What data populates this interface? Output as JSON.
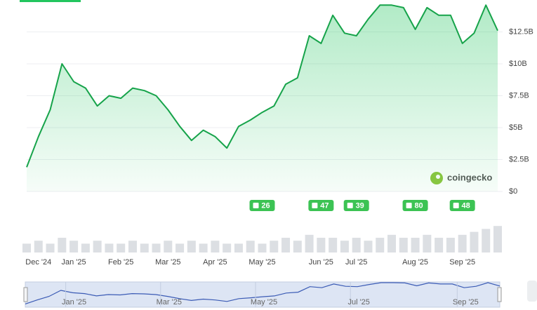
{
  "chart_data": {
    "type": "area",
    "categories": [
      null,
      "Dec '24",
      null,
      null,
      "Jan '25",
      null,
      null,
      null,
      "Feb '25",
      null,
      null,
      null,
      "Mar '25",
      null,
      null,
      null,
      "Apr '25",
      null,
      null,
      null,
      "May '25",
      null,
      null,
      null,
      null,
      "Jun '25",
      null,
      null,
      "Jul '25",
      null,
      null,
      null,
      null,
      "Aug '25",
      null,
      null,
      null,
      "Sep '25",
      null,
      null,
      null
    ],
    "values": [
      1.9,
      4.3,
      6.4,
      10.0,
      8.6,
      8.1,
      6.7,
      7.5,
      7.3,
      8.1,
      7.9,
      7.5,
      6.4,
      5.1,
      4.0,
      4.8,
      4.3,
      3.4,
      5.1,
      5.6,
      6.2,
      6.7,
      8.4,
      8.9,
      12.2,
      11.6,
      13.8,
      12.4,
      12.2,
      13.5,
      14.6,
      14.6,
      14.4,
      12.7,
      14.4,
      13.8,
      13.8,
      11.6,
      12.4,
      14.6,
      12.6
    ],
    "color": "#16a34a",
    "ylim": [
      0,
      15
    ],
    "yticks": [
      {
        "value": 0,
        "label": "$0"
      },
      {
        "value": 2.5,
        "label": "$2.5B"
      },
      {
        "value": 5,
        "label": "$5B"
      },
      {
        "value": 7.5,
        "label": "$7.5B"
      },
      {
        "value": 10,
        "label": "$10B"
      },
      {
        "value": 12.5,
        "label": "$12.5B"
      }
    ],
    "grid": true,
    "volume": {
      "values": [
        3,
        4,
        3,
        5,
        4,
        3,
        4,
        3,
        3,
        4,
        3,
        3,
        4,
        3,
        4,
        3,
        4,
        3,
        3,
        4,
        3,
        4,
        5,
        4,
        6,
        5,
        5,
        4,
        5,
        4,
        5,
        6,
        5,
        5,
        6,
        5,
        5,
        6,
        7,
        8,
        9
      ],
      "color": "#dcdfe3",
      "ylim": [
        0,
        10
      ]
    },
    "events": [
      {
        "month": "May '25",
        "count": 26
      },
      {
        "month": "Jun '25",
        "count": 47
      },
      {
        "month": "Jul '25",
        "count": 39
      },
      {
        "month": "Aug '25",
        "count": 80
      },
      {
        "month": "Sep '25",
        "count": 48
      }
    ],
    "navigator": {
      "color": "#3b5bb5",
      "labels": [
        "Jan '25",
        "Mar '25",
        "May '25",
        "Jul '25",
        "Sep '25"
      ]
    },
    "watermark": "coingecko"
  }
}
